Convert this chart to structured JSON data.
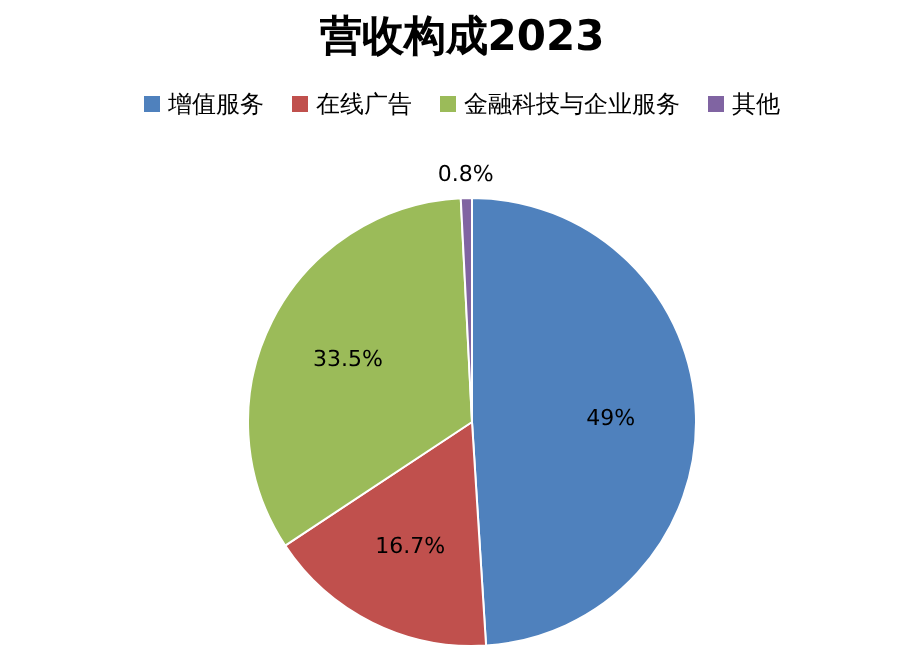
{
  "chart_data": {
    "type": "pie",
    "title": "营收构成2023",
    "categories": [
      "增值服务",
      "在线广告",
      "金融科技与企业服务",
      "其他"
    ],
    "values": [
      49,
      16.7,
      33.5,
      0.8
    ],
    "colors": [
      "#4f81bd",
      "#c0504d",
      "#9bbb59",
      "#8064a2"
    ],
    "value_labels": [
      "49%",
      "16.7%",
      "33.5%",
      "0.8%"
    ],
    "legend": "top"
  }
}
